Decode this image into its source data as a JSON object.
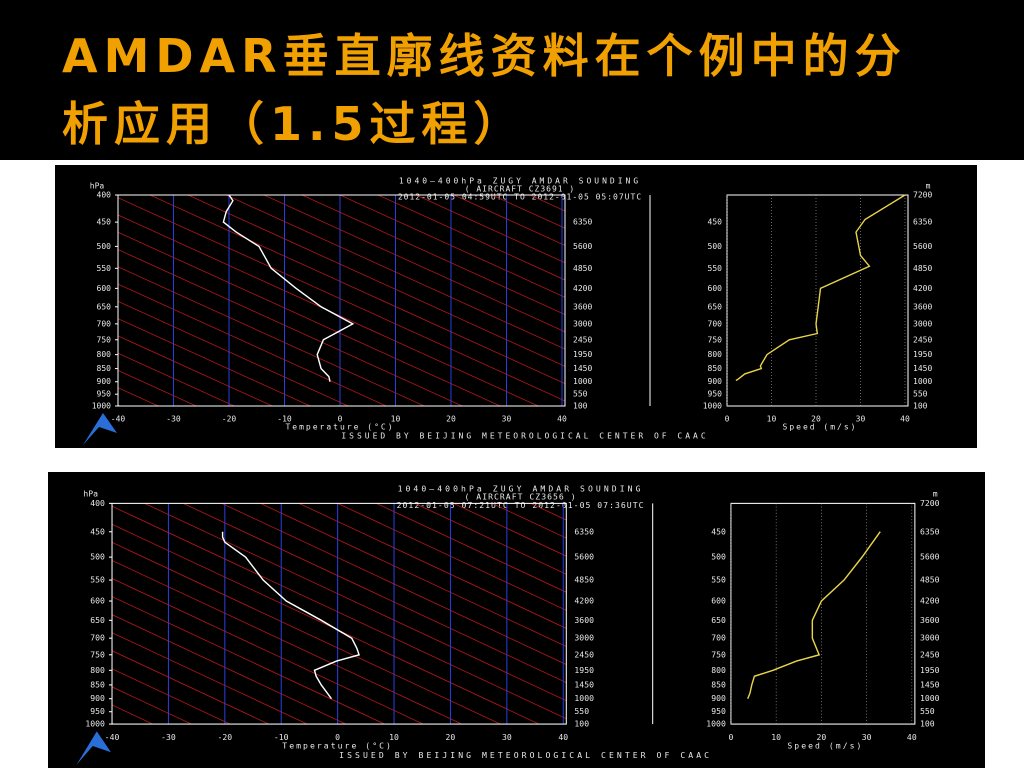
{
  "title": [
    "AMDAR垂直廓线资料在个例中的分",
    "析应用（1.5过程）"
  ],
  "chart_data": [
    {
      "type": "sounding",
      "title": "1040—400hPa ZUGY AMDAR SOUNDING",
      "subtitle": "( AIRCRAFT CZ3691 )",
      "time_range": "2012-01-05 04:59UTC TO 2012-01-05 05:07UTC",
      "footer": "ISSUED BY BEIJING METEOROLOGICAL CENTER OF CAAC",
      "y_unit": "hPa",
      "y2_unit": "m",
      "ylim": [
        400,
        1000
      ],
      "log_scale": true,
      "yticks": [
        400,
        450,
        500,
        550,
        600,
        650,
        700,
        750,
        800,
        850,
        900,
        950,
        1000
      ],
      "height_labels": [
        7200,
        6350,
        5600,
        4850,
        4200,
        3600,
        3000,
        2450,
        1950,
        1450,
        1000,
        550,
        100
      ],
      "xlabel": "Temperature (°C)",
      "xlim": [
        -40,
        40
      ],
      "xticks": [
        -40,
        -30,
        -20,
        -10,
        0,
        10,
        20,
        30,
        40
      ],
      "speed_xlabel": "Speed (m/s)",
      "speed_xlim": [
        0,
        40
      ],
      "speed_xticks": [
        0,
        10,
        20,
        30,
        40
      ],
      "temperature": {
        "color": "#ffffff",
        "pressure": [
          400,
          410,
          430,
          450,
          470,
          500,
          550,
          600,
          650,
          700,
          750,
          800,
          850,
          880,
          900
        ],
        "values": [
          -20,
          -19.3,
          -20.5,
          -21,
          -18.7,
          -14.6,
          -12.4,
          -7.9,
          -3.4,
          2.3,
          -3,
          -4.1,
          -3.4,
          -2,
          -1.8
        ]
      },
      "speed": {
        "color": "#e8d44a",
        "pressure": [
          400,
          445,
          470,
          520,
          545,
          600,
          650,
          700,
          730,
          750,
          800,
          840,
          850,
          870,
          890,
          895
        ],
        "values": [
          40,
          31,
          29,
          30,
          32,
          21,
          20.5,
          20,
          20.3,
          14,
          9,
          7.5,
          7.7,
          4,
          2.5,
          2
        ]
      }
    },
    {
      "type": "sounding",
      "title": "1040—400hPa ZUGY AMDAR SOUNDING",
      "subtitle": "( AIRCRAFT CZ3656 )",
      "time_range": "2012-01-05 07:21UTC TO 2012-01-05 07:36UTC",
      "footer": "ISSUED BY BEIJING METEOROLOGICAL CENTER OF CAAC",
      "y_unit": "hPa",
      "y2_unit": "m",
      "ylim": [
        400,
        1000
      ],
      "log_scale": true,
      "yticks": [
        400,
        450,
        500,
        550,
        600,
        650,
        700,
        750,
        800,
        850,
        900,
        950,
        1000
      ],
      "height_labels": [
        7200,
        6350,
        5600,
        4850,
        4200,
        3600,
        3000,
        2450,
        1950,
        1450,
        1000,
        550,
        100
      ],
      "xlabel": "Temperature (°C)",
      "xlim": [
        -40,
        40
      ],
      "xticks": [
        -40,
        -30,
        -20,
        -10,
        0,
        10,
        20,
        30,
        40
      ],
      "speed_xlabel": "Speed (m/s)",
      "speed_xlim": [
        0,
        40
      ],
      "speed_xticks": [
        0,
        10,
        20,
        30,
        40
      ],
      "temperature": {
        "color": "#ffffff",
        "pressure": [
          450,
          460,
          470,
          500,
          550,
          600,
          650,
          700,
          730,
          750,
          770,
          800,
          820,
          850,
          900
        ],
        "values": [
          -20.4,
          -20.4,
          -20,
          -16.3,
          -13.2,
          -9.1,
          -2.9,
          2.5,
          3.4,
          3.8,
          -0.2,
          -4.1,
          -3.8,
          -2.9,
          -1.1
        ]
      },
      "speed": {
        "color": "#e8d44a",
        "pressure": [
          450,
          500,
          550,
          600,
          650,
          700,
          750,
          770,
          800,
          820,
          850,
          880,
          900
        ],
        "values": [
          33,
          29,
          25,
          20,
          18,
          18,
          19.5,
          14.5,
          9.3,
          5.2,
          4.6,
          4.2,
          3.7
        ]
      }
    }
  ]
}
